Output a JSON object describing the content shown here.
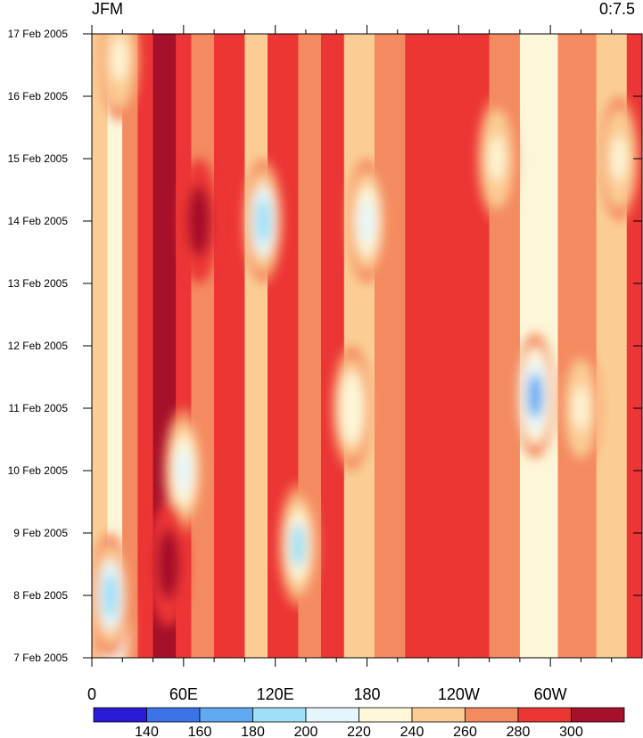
{
  "chart_data": {
    "type": "heatmap",
    "title_left": "JFM",
    "title_right": "0:7.5",
    "x_ticks": [
      {
        "lon": 0,
        "label": "0"
      },
      {
        "lon": 60,
        "label": "60E"
      },
      {
        "lon": 120,
        "label": "120E"
      },
      {
        "lon": 180,
        "label": "180"
      },
      {
        "lon": 240,
        "label": "120W"
      },
      {
        "lon": 300,
        "label": "60W"
      }
    ],
    "xlim": [
      0,
      360
    ],
    "y_ticks": [
      {
        "day": 7,
        "label": "7 Feb 2005"
      },
      {
        "day": 8,
        "label": "8 Feb 2005"
      },
      {
        "day": 9,
        "label": "9 Feb 2005"
      },
      {
        "day": 10,
        "label": "10 Feb 2005"
      },
      {
        "day": 11,
        "label": "11 Feb 2005"
      },
      {
        "day": 12,
        "label": "12 Feb 2005"
      },
      {
        "day": 13,
        "label": "13 Feb 2005"
      },
      {
        "day": 14,
        "label": "14 Feb 2005"
      },
      {
        "day": 15,
        "label": "15 Feb 2005"
      },
      {
        "day": 16,
        "label": "16 Feb 2005"
      },
      {
        "day": 17,
        "label": "17 Feb 2005"
      }
    ],
    "ylim": [
      7,
      17
    ],
    "levels": [
      140,
      160,
      180,
      200,
      220,
      240,
      260,
      280,
      300
    ],
    "colorbar_labels": [
      "140",
      "160",
      "180",
      "200",
      "220",
      "240",
      "260",
      "280",
      "300"
    ],
    "colors": [
      "#2a1bd6",
      "#3c73e8",
      "#60a9f0",
      "#9ee0f7",
      "#e4f6fb",
      "#fdf6d8",
      "#fbcd95",
      "#f48b60",
      "#ec3535",
      "#a6102a"
    ],
    "bands_by_longitude": [
      {
        "lon_start": 0,
        "lon_end": 10,
        "value": 250
      },
      {
        "lon_start": 10,
        "lon_end": 20,
        "value": 230
      },
      {
        "lon_start": 20,
        "lon_end": 30,
        "value": 270
      },
      {
        "lon_start": 30,
        "lon_end": 40,
        "value": 290
      },
      {
        "lon_start": 40,
        "lon_end": 55,
        "value": 305
      },
      {
        "lon_start": 55,
        "lon_end": 65,
        "value": 290
      },
      {
        "lon_start": 65,
        "lon_end": 80,
        "value": 260
      },
      {
        "lon_start": 80,
        "lon_end": 100,
        "value": 285
      },
      {
        "lon_start": 100,
        "lon_end": 115,
        "value": 240
      },
      {
        "lon_start": 115,
        "lon_end": 135,
        "value": 280
      },
      {
        "lon_start": 135,
        "lon_end": 150,
        "value": 260
      },
      {
        "lon_start": 150,
        "lon_end": 165,
        "value": 280
      },
      {
        "lon_start": 165,
        "lon_end": 185,
        "value": 250
      },
      {
        "lon_start": 185,
        "lon_end": 205,
        "value": 275
      },
      {
        "lon_start": 205,
        "lon_end": 260,
        "value": 295
      },
      {
        "lon_start": 260,
        "lon_end": 280,
        "value": 275
      },
      {
        "lon_start": 280,
        "lon_end": 305,
        "value": 225
      },
      {
        "lon_start": 305,
        "lon_end": 330,
        "value": 270
      },
      {
        "lon_start": 330,
        "lon_end": 350,
        "value": 255
      },
      {
        "lon_start": 350,
        "lon_end": 360,
        "value": 285
      }
    ],
    "anomalies": [
      {
        "lon": 290,
        "day": 11.2,
        "value": 165
      },
      {
        "lon": 112,
        "day": 14.0,
        "value": 190
      },
      {
        "lon": 60,
        "day": 10.0,
        "value": 215
      },
      {
        "lon": 135,
        "day": 8.8,
        "value": 195
      },
      {
        "lon": 14,
        "day": 7.5,
        "value": 175
      },
      {
        "lon": 180,
        "day": 14.0,
        "value": 205
      },
      {
        "lon": 265,
        "day": 15.0,
        "value": 225
      },
      {
        "lon": 345,
        "day": 15.0,
        "value": 225
      },
      {
        "lon": 18,
        "day": 16.6,
        "value": 225
      },
      {
        "lon": 70,
        "day": 14.0,
        "value": 310
      },
      {
        "lon": 50,
        "day": 8.5,
        "value": 310
      },
      {
        "lon": 170,
        "day": 11.0,
        "value": 220
      },
      {
        "lon": 320,
        "day": 11.0,
        "value": 235
      },
      {
        "lon": 12,
        "day": 8.0,
        "value": 185
      }
    ]
  }
}
